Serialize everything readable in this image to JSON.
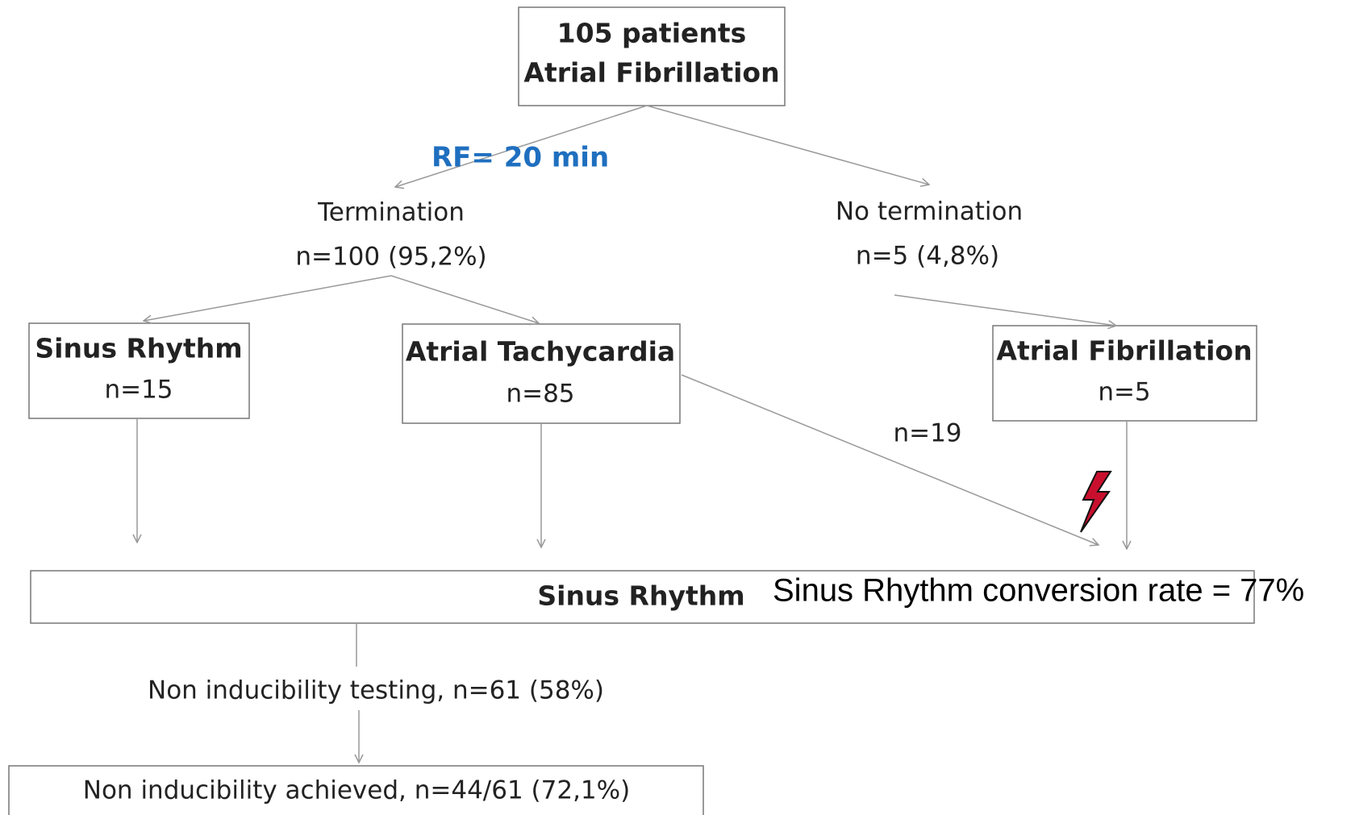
{
  "nodes": [
    {
      "lines": [
        "105 patients",
        "Atrial Fibrillation"
      ]
    },
    {
      "lines": [
        "Termination",
        "n=100 (95,2%)"
      ]
    },
    {
      "lines": [
        "No termination",
        "n=5 (4,8%)"
      ]
    },
    {
      "lines": [
        "Sinus Rhythm",
        "n=15"
      ]
    },
    {
      "lines": [
        "Atrial Tachycardia",
        "n=85"
      ]
    },
    {
      "lines": [
        "Atrial Fibrillation",
        "n=5"
      ]
    },
    {
      "lines": [
        "Sinus Rhythm"
      ]
    },
    {
      "lines": [
        "Non inducibility testing, n=61 (58%)"
      ]
    },
    {
      "lines": [
        "Non inducibility achieved, n=44/61 (72,1%)"
      ]
    }
  ],
  "annotations": {
    "rf": "RF= 20 min",
    "n19": "n=19",
    "conversion": "Sinus Rhythm conversion rate = 77%"
  }
}
